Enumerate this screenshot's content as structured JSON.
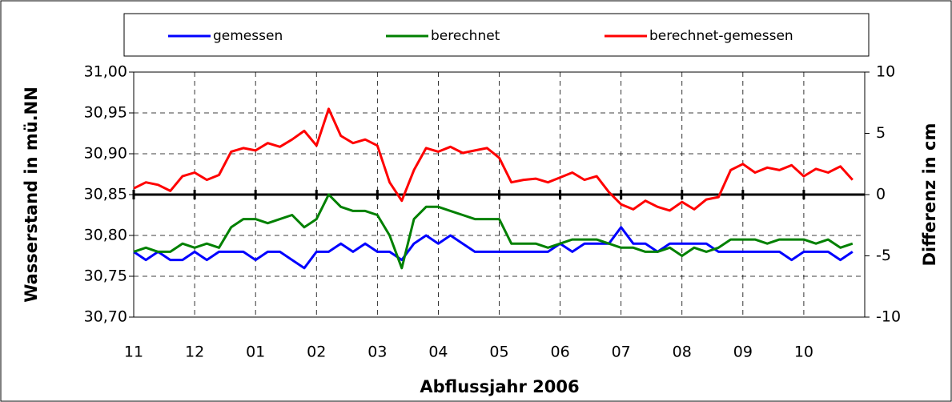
{
  "chart_data": {
    "type": "line",
    "x_label": "Abflussjahr 2006",
    "y_label": "Wasserstand in mü.NN",
    "y2_label": "Differenz in cm",
    "x": [
      0,
      0.2,
      0.4,
      0.6,
      0.8,
      1,
      1.2,
      1.4,
      1.6,
      1.8,
      2,
      2.2,
      2.4,
      2.6,
      2.8,
      3,
      3.2,
      3.4,
      3.6,
      3.8,
      4,
      4.2,
      4.4,
      4.6,
      4.8,
      5,
      5.2,
      5.4,
      5.6,
      5.8,
      6,
      6.2,
      6.4,
      6.6,
      6.8,
      7,
      7.2,
      7.4,
      7.6,
      7.8,
      8,
      8.2,
      8.4,
      8.6,
      8.8,
      9,
      9.2,
      9.4,
      9.6,
      9.8,
      10,
      10.2,
      10.4,
      10.6,
      10.8,
      11,
      11.2,
      11.4,
      11.6,
      11.8
    ],
    "xlim": [
      0,
      12
    ],
    "xticks": [
      {
        "value": 0,
        "label": "11"
      },
      {
        "value": 1,
        "label": "12"
      },
      {
        "value": 2,
        "label": "01"
      },
      {
        "value": 3,
        "label": "02"
      },
      {
        "value": 4,
        "label": "03"
      },
      {
        "value": 5,
        "label": "04"
      },
      {
        "value": 6,
        "label": "05"
      },
      {
        "value": 7,
        "label": "06"
      },
      {
        "value": 8,
        "label": "07"
      },
      {
        "value": 9,
        "label": "08"
      },
      {
        "value": 10,
        "label": "09"
      },
      {
        "value": 11,
        "label": "10"
      }
    ],
    "ylim": [
      30.7,
      31.0
    ],
    "yticks": [
      {
        "value": 30.7,
        "label": "30,70"
      },
      {
        "value": 30.75,
        "label": "30,75"
      },
      {
        "value": 30.8,
        "label": "30,80"
      },
      {
        "value": 30.85,
        "label": "30,85"
      },
      {
        "value": 30.9,
        "label": "30,90"
      },
      {
        "value": 30.95,
        "label": "30,95"
      },
      {
        "value": 31.0,
        "label": "31,00"
      }
    ],
    "y2lim": [
      -10,
      10
    ],
    "y2ticks": [
      -10,
      -5,
      0,
      5,
      10
    ],
    "grid": true,
    "series": [
      {
        "name": "gemessen",
        "color": "#0000ff",
        "values": [
          30.78,
          30.77,
          30.78,
          30.77,
          30.77,
          30.78,
          30.77,
          30.78,
          30.78,
          30.78,
          30.77,
          30.78,
          30.78,
          30.77,
          30.76,
          30.78,
          30.78,
          30.79,
          30.78,
          30.79,
          30.78,
          30.78,
          30.77,
          30.79,
          30.8,
          30.79,
          30.8,
          30.79,
          30.78,
          30.78,
          30.78,
          30.78,
          30.78,
          30.78,
          30.78,
          30.79,
          30.78,
          30.79,
          30.79,
          30.79,
          30.81,
          30.79,
          30.79,
          30.78,
          30.79,
          30.79,
          30.79,
          30.79,
          30.78,
          30.78,
          30.78,
          30.78,
          30.78,
          30.78,
          30.77,
          30.78,
          30.78,
          30.78,
          30.77,
          30.78
        ]
      },
      {
        "name": "berechnet",
        "color": "#008000",
        "values": [
          30.78,
          30.785,
          30.78,
          30.78,
          30.79,
          30.785,
          30.79,
          30.785,
          30.81,
          30.82,
          30.82,
          30.815,
          30.82,
          30.825,
          30.81,
          30.82,
          30.85,
          30.835,
          30.83,
          30.83,
          30.825,
          30.8,
          30.76,
          30.82,
          30.835,
          30.835,
          30.83,
          30.825,
          30.82,
          30.82,
          30.82,
          30.79,
          30.79,
          30.79,
          30.785,
          30.79,
          30.795,
          30.795,
          30.795,
          30.79,
          30.785,
          30.785,
          30.78,
          30.78,
          30.785,
          30.775,
          30.785,
          30.78,
          30.785,
          30.795,
          30.795,
          30.795,
          30.79,
          30.795,
          30.795,
          30.795,
          30.79,
          30.795,
          30.785,
          30.79
        ]
      },
      {
        "name": "berechnet-gemessen",
        "color": "#ff0000",
        "axis": "y2",
        "values": [
          0.5,
          1,
          0.8,
          0.3,
          1.5,
          1.8,
          1.2,
          1.6,
          3.5,
          3.8,
          3.6,
          4.2,
          3.9,
          4.5,
          5.2,
          4.0,
          7.0,
          4.8,
          4.2,
          4.5,
          4.0,
          1.0,
          -0.5,
          2.0,
          3.8,
          3.5,
          3.9,
          3.4,
          3.6,
          3.8,
          3.0,
          1.0,
          1.2,
          1.3,
          1.0,
          1.4,
          1.8,
          1.2,
          1.5,
          0.2,
          -0.8,
          -1.2,
          -0.5,
          -1.0,
          -1.3,
          -0.6,
          -1.2,
          -0.4,
          -0.2,
          2.0,
          2.5,
          1.8,
          2.2,
          2.0,
          2.4,
          1.5,
          2.1,
          1.8,
          2.3,
          1.2
        ]
      }
    ]
  }
}
